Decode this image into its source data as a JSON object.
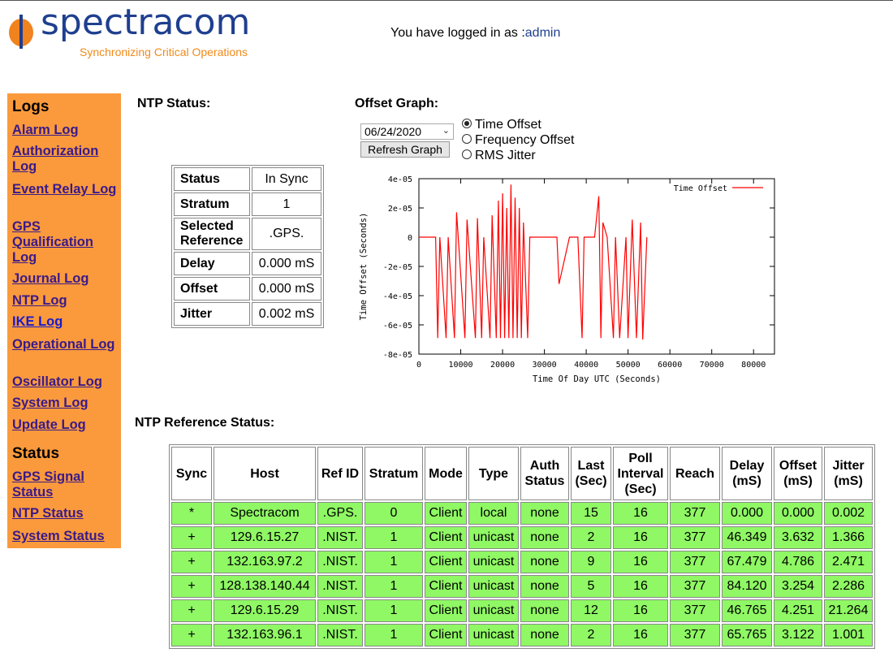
{
  "brand": {
    "name": "spectracom",
    "tagline": "Synchronizing Critical Operations"
  },
  "login": {
    "prefix": "You have logged in as :",
    "user": "admin"
  },
  "sidebar": {
    "logs_heading": "Logs",
    "log_links": [
      "Alarm Log",
      "Authorization Log",
      "Event Relay Log",
      "GPS Qualification Log",
      "Journal Log",
      "NTP Log",
      "IKE Log",
      "Operational Log",
      "Oscillator Log",
      "System Log",
      "Update Log"
    ],
    "status_heading": "Status",
    "status_links": [
      "GPS Signal Status",
      "NTP Status",
      "System Status"
    ]
  },
  "ntp_status": {
    "title": "NTP Status:",
    "rows": [
      {
        "label": "Status",
        "value": "In Sync"
      },
      {
        "label": "Stratum",
        "value": "1"
      },
      {
        "label": "Selected Reference",
        "value": ".GPS."
      },
      {
        "label": "Delay",
        "value": "0.000 mS"
      },
      {
        "label": "Offset",
        "value": "0.000 mS"
      },
      {
        "label": "Jitter",
        "value": "0.002 mS"
      }
    ]
  },
  "offset_graph": {
    "title": "Offset Graph:",
    "date_value": "06/24/2020",
    "refresh_label": "Refresh Graph",
    "options": [
      "Time Offset",
      "Frequency Offset",
      "RMS Jitter"
    ],
    "selected_option": "Time Offset"
  },
  "chart_data": {
    "type": "line",
    "xlabel": "Time Of Day UTC (Seconds)",
    "ylabel": "Time Offset (Seconds)",
    "xlim": [
      0,
      85000
    ],
    "ylim": [
      -8e-05,
      4e-05
    ],
    "x_ticks": [
      "0",
      "10000",
      "20000",
      "30000",
      "40000",
      "50000",
      "60000",
      "70000",
      "80000"
    ],
    "y_ticks": [
      "4e-05",
      "2e-05",
      "0",
      "-2e-05",
      "-4e-05",
      "-6e-05",
      "-8e-05"
    ],
    "legend": "top-right",
    "series": [
      {
        "name": "Time Offset",
        "color": "#ff0000",
        "x": [
          0,
          4000,
          4500,
          5000,
          6500,
          7000,
          8500,
          9000,
          11000,
          11500,
          13500,
          14000,
          15000,
          15500,
          17000,
          17500,
          18500,
          19000,
          19500,
          20000,
          20500,
          21000,
          21500,
          22000,
          22500,
          23000,
          23500,
          24000,
          24500,
          25000,
          26000,
          26500,
          28000,
          30000,
          33000,
          33500,
          36000,
          38000,
          39000,
          39500,
          42000,
          43000,
          43500,
          44000,
          45000,
          46500,
          47000,
          48000,
          49500,
          50000,
          51000,
          52000,
          53000,
          53500,
          54500
        ],
        "y": [
          0,
          0,
          -6.9e-05,
          0,
          -6.9e-05,
          0,
          -6.9e-05,
          1.7e-05,
          -6.9e-05,
          1.2e-05,
          -6.9e-05,
          1.3e-05,
          -6.9e-05,
          0,
          -6.9e-05,
          1.5e-05,
          -6.9e-05,
          2.5e-05,
          -6.9e-05,
          3e-05,
          -6.9e-05,
          2e-05,
          -6.9e-05,
          3.6e-05,
          -6.9e-05,
          2.7e-05,
          -6.9e-05,
          2e-05,
          -6.9e-05,
          1e-05,
          -6.9e-05,
          0,
          0,
          0,
          0,
          -3.2e-05,
          0,
          0,
          -6.9e-05,
          0,
          0,
          2.8e-05,
          -6.9e-05,
          1e-05,
          0,
          -6.9e-05,
          0,
          -6.9e-05,
          0,
          -6.9e-05,
          1.2e-05,
          -6.9e-05,
          1e-05,
          -7e-05,
          0
        ]
      }
    ]
  },
  "ref_status": {
    "title": "NTP Reference Status:",
    "headers": [
      "Sync",
      "Host",
      "Ref ID",
      "Stratum",
      "Mode",
      "Type",
      "Auth Status",
      "Last (Sec)",
      "Poll Interval (Sec)",
      "Reach",
      "Delay (mS)",
      "Offset (mS)",
      "Jitter (mS)"
    ],
    "rows": [
      [
        "*",
        "Spectracom",
        ".GPS.",
        "0",
        "Client",
        "local",
        "none",
        "15",
        "16",
        "377",
        "0.000",
        "0.000",
        "0.002"
      ],
      [
        "+",
        "129.6.15.27",
        ".NIST.",
        "1",
        "Client",
        "unicast",
        "none",
        "2",
        "16",
        "377",
        "46.349",
        "3.632",
        "1.366"
      ],
      [
        "+",
        "132.163.97.2",
        ".NIST.",
        "1",
        "Client",
        "unicast",
        "none",
        "9",
        "16",
        "377",
        "67.479",
        "4.786",
        "2.471"
      ],
      [
        "+",
        "128.138.140.44",
        ".NIST.",
        "1",
        "Client",
        "unicast",
        "none",
        "5",
        "16",
        "377",
        "84.120",
        "3.254",
        "2.286"
      ],
      [
        "+",
        "129.6.15.29",
        ".NIST.",
        "1",
        "Client",
        "unicast",
        "none",
        "12",
        "16",
        "377",
        "46.765",
        "4.251",
        "21.264"
      ],
      [
        "+",
        "132.163.96.1",
        ".NIST.",
        "1",
        "Client",
        "unicast",
        "none",
        "2",
        "16",
        "377",
        "65.765",
        "3.122",
        "1.001"
      ]
    ]
  },
  "colors": {
    "sidebar_bg": "#fb9a3c",
    "table_row_bg": "#8ff864",
    "brand_blue": "#1f3f8f",
    "brand_orange": "#f08a1a",
    "series_red": "#ff0000"
  }
}
